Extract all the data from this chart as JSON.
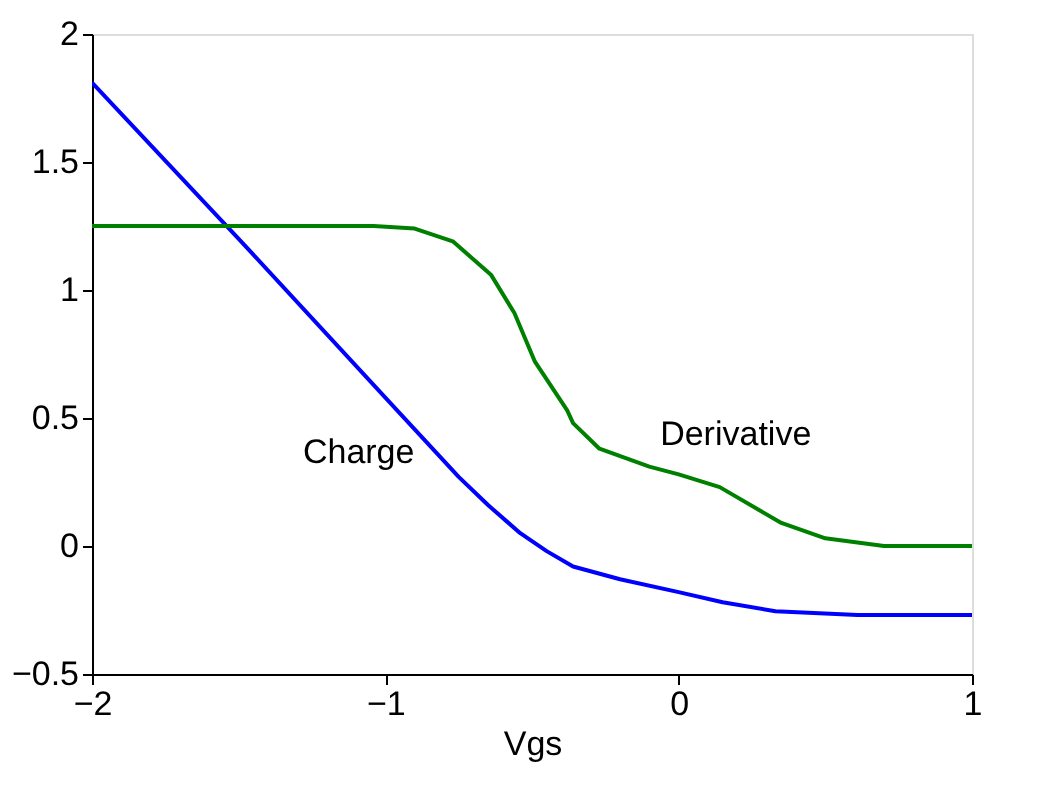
{
  "chart_data": {
    "type": "line",
    "xlabel": "Vgs",
    "xlim": [
      -2,
      1
    ],
    "xticks": [
      -2,
      -1,
      0,
      1
    ],
    "ylim": [
      -0.5,
      2
    ],
    "yticks": [
      -0.5,
      0,
      0.5,
      1,
      1.5,
      2
    ],
    "grid": false,
    "line_style": "solid",
    "marker": "none",
    "series": [
      {
        "name": "Charge",
        "color": "#0000ff",
        "x": [
          -2,
          -1.5,
          -1,
          -0.75,
          -0.65,
          -0.54,
          -0.45,
          -0.36,
          -0.2,
          0,
          0.15,
          0.33,
          0.61,
          1
        ],
        "values": [
          1.81,
          1.2,
          0.58,
          0.27,
          0.16,
          0.05,
          -0.02,
          -0.08,
          -0.13,
          -0.18,
          -0.22,
          -0.255,
          -0.27,
          -0.27
        ]
      },
      {
        "name": "Derivative",
        "color": "#008000",
        "x": [
          -2,
          -1.04,
          -0.9,
          -0.77,
          -0.64,
          -0.56,
          -0.49,
          -0.38,
          -0.36,
          -0.27,
          -0.1,
          0,
          0.14,
          0.35,
          0.5,
          0.7,
          1
        ],
        "values": [
          1.25,
          1.25,
          1.24,
          1.19,
          1.06,
          0.91,
          0.72,
          0.53,
          0.48,
          0.38,
          0.31,
          0.28,
          0.23,
          0.09,
          0.03,
          0,
          0
        ]
      }
    ]
  }
}
